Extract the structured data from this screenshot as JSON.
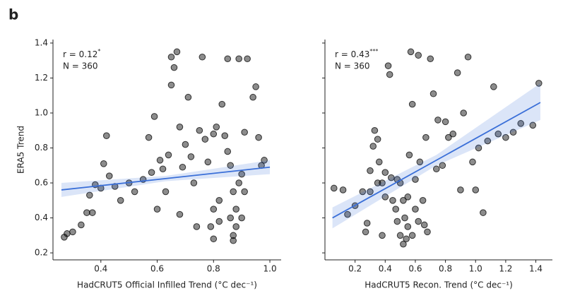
{
  "figure_label": "b",
  "chart_data": [
    {
      "type": "scatter",
      "xlabel": "HadCRUT5 Official Infilled Trend (°C dec⁻¹)",
      "ylabel": "ERA5 Trend",
      "r_text": "r = 0.12",
      "significance": "*",
      "n_text": "N = 360",
      "xlim": [
        0.23,
        1.04
      ],
      "ylim": [
        0.16,
        1.42
      ],
      "xticks": [
        0.4,
        0.6,
        0.8,
        {
          "value": 1,
          "label": "1.0"
        }
      ],
      "yticks": [
        0.2,
        0.4,
        0.6,
        0.8,
        {
          "value": 1,
          "label": "1.0"
        },
        1.2,
        1.4
      ],
      "ytick_labels": true,
      "color": "#000000",
      "x": [
        0.27,
        0.28,
        0.3,
        0.33,
        0.35,
        0.37,
        0.36,
        0.38,
        0.4,
        0.41,
        0.42,
        0.43,
        0.45,
        0.47,
        0.5,
        0.52,
        0.55,
        0.57,
        0.58,
        0.59,
        0.6,
        0.61,
        0.62,
        0.63,
        0.64,
        0.65,
        0.65,
        0.66,
        0.67,
        0.68,
        0.69,
        0.7,
        0.71,
        0.72,
        0.73,
        0.75,
        0.76,
        0.77,
        0.78,
        0.8,
        0.81,
        0.82,
        0.83,
        0.84,
        0.85,
        0.86,
        0.87,
        0.86,
        0.87,
        0.87,
        0.88,
        0.89,
        0.9,
        0.91,
        0.9,
        0.88,
        0.8,
        0.79,
        0.8,
        0.82,
        0.91,
        0.92,
        0.94,
        0.95,
        0.97,
        0.98,
        0.96,
        0.85,
        0.89,
        0.74,
        0.68
      ],
      "values": [
        0.29,
        0.31,
        0.32,
        0.36,
        0.43,
        0.43,
        0.53,
        0.59,
        0.57,
        0.71,
        0.87,
        0.64,
        0.58,
        0.5,
        0.6,
        0.55,
        0.62,
        0.86,
        0.66,
        0.98,
        0.45,
        0.73,
        0.68,
        0.55,
        0.76,
        1.16,
        1.32,
        1.26,
        1.35,
        0.92,
        0.69,
        0.82,
        1.09,
        0.75,
        0.6,
        0.9,
        1.32,
        0.85,
        0.72,
        0.88,
        0.92,
        0.5,
        1.05,
        0.87,
        0.78,
        0.7,
        0.55,
        0.4,
        0.3,
        0.27,
        0.45,
        0.6,
        0.65,
        0.55,
        0.4,
        0.35,
        0.45,
        0.35,
        0.28,
        0.38,
        0.89,
        1.31,
        1.09,
        1.15,
        0.7,
        0.73,
        0.86,
        1.31,
        1.31,
        0.35,
        0.42
      ],
      "fit": {
        "color": "#3a6fd8",
        "x": [
          0.26,
          0.63,
          1.0
        ],
        "values": [
          0.56,
          0.625,
          0.69
        ],
        "lower": [
          0.52,
          0.61,
          0.65
        ],
        "upper": [
          0.6,
          0.64,
          0.73
        ]
      }
    },
    {
      "type": "scatter",
      "xlabel": "HadCRUT5 Recon. Trend (°C dec⁻¹)",
      "r_text": "r = 0.43",
      "significance": "***",
      "n_text": "N = 360",
      "xlim": [
        0,
        1.51
      ],
      "ylim": [
        0.16,
        1.42
      ],
      "xticks": [
        0.2,
        0.4,
        0.6,
        0.8,
        {
          "value": 1,
          "label": "1.0"
        },
        1.2,
        1.4
      ],
      "yticks": [
        0.2,
        0.4,
        0.6,
        0.8,
        1,
        1.2,
        1.4
      ],
      "ytick_labels": false,
      "color": "#000000",
      "x": [
        0.06,
        0.12,
        0.15,
        0.2,
        0.25,
        0.27,
        0.28,
        0.3,
        0.32,
        0.33,
        0.35,
        0.36,
        0.38,
        0.4,
        0.42,
        0.43,
        0.44,
        0.45,
        0.47,
        0.48,
        0.5,
        0.52,
        0.53,
        0.55,
        0.56,
        0.57,
        0.58,
        0.6,
        0.62,
        0.63,
        0.65,
        0.66,
        0.67,
        0.7,
        0.72,
        0.74,
        0.75,
        0.78,
        0.8,
        0.82,
        0.85,
        0.88,
        0.9,
        0.92,
        0.95,
        0.98,
        1.0,
        1.02,
        1.05,
        1.08,
        1.12,
        1.15,
        1.2,
        1.25,
        1.3,
        1.38,
        1.42,
        0.5,
        0.52,
        0.55,
        0.58,
        0.54,
        0.48,
        0.4,
        0.35,
        0.3,
        0.38,
        0.6,
        0.62,
        0.68
      ],
      "values": [
        0.57,
        0.56,
        0.42,
        0.47,
        0.55,
        0.32,
        0.37,
        0.67,
        0.81,
        0.9,
        0.85,
        0.72,
        0.6,
        0.52,
        1.27,
        1.22,
        0.63,
        0.5,
        0.45,
        0.38,
        0.3,
        0.25,
        0.4,
        0.52,
        0.76,
        1.35,
        1.05,
        0.62,
        1.33,
        0.72,
        0.5,
        0.36,
        0.86,
        1.31,
        1.11,
        0.68,
        0.96,
        0.7,
        0.95,
        0.86,
        0.88,
        1.23,
        0.56,
        1.0,
        1.32,
        0.72,
        0.56,
        0.8,
        0.43,
        0.84,
        1.15,
        0.88,
        0.86,
        0.89,
        0.94,
        0.93,
        1.17,
        0.6,
        0.5,
        0.35,
        0.3,
        0.28,
        0.62,
        0.66,
        0.6,
        0.55,
        0.3,
        0.45,
        0.38,
        0.32
      ],
      "fit": {
        "color": "#3a6fd8",
        "x": [
          0.05,
          0.74,
          1.43
        ],
        "values": [
          0.4,
          0.73,
          1.06
        ],
        "lower": [
          0.34,
          0.7,
          0.96
        ],
        "upper": [
          0.46,
          0.76,
          1.17
        ]
      }
    }
  ]
}
